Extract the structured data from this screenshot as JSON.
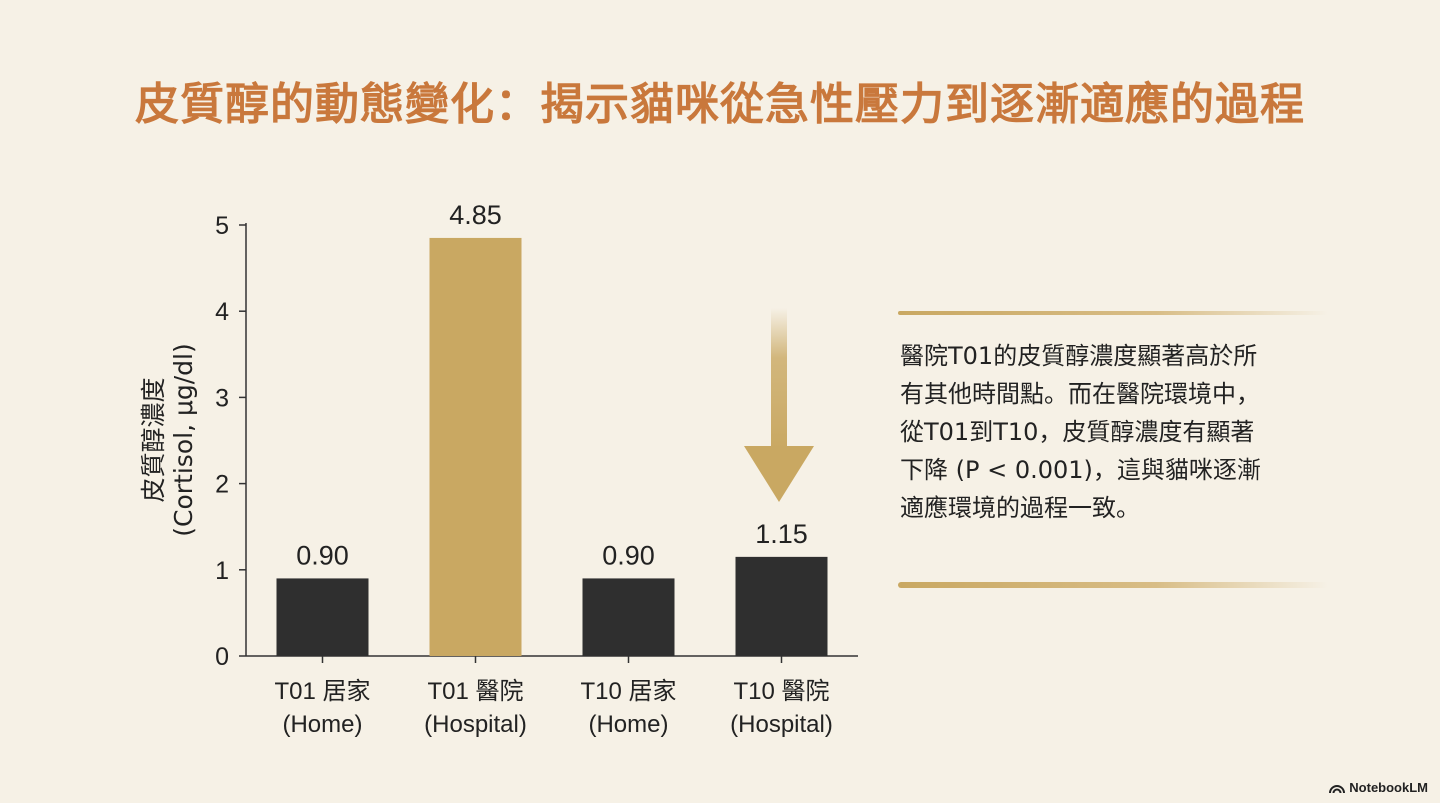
{
  "title": "皮質醇的動態變化：揭示貓咪從急性壓力到逐漸適應的過程",
  "chart_data": {
    "type": "bar",
    "categories": [
      {
        "line1": "T01 居家",
        "line2": "(Home)"
      },
      {
        "line1": "T01 醫院",
        "line2": "(Hospital)"
      },
      {
        "line1": "T10 居家",
        "line2": "(Home)"
      },
      {
        "line1": "T10 醫院",
        "line2": "(Hospital)"
      }
    ],
    "values": [
      0.9,
      4.85,
      0.9,
      1.15
    ],
    "value_labels": [
      "0.90",
      "4.85",
      "0.90",
      "1.15"
    ],
    "bar_colors": [
      "#2f2f2f",
      "#c9a862",
      "#2f2f2f",
      "#2f2f2f"
    ],
    "ylabel_line1": "皮質醇濃度",
    "ylabel_line2": "(Cortisol, μg/dl)",
    "yticks": [
      0,
      1,
      2,
      3,
      4,
      5
    ],
    "ylim": [
      0,
      5
    ],
    "grid": false,
    "legend": "none"
  },
  "annotation": {
    "lines": [
      "醫院T01的皮質醇濃度顯著高於所",
      "有其他時間點。而在醫院環境中，",
      "從T01到T10，皮質醇濃度有顯著",
      "下降 (P < 0.001)，這與貓咪逐漸",
      "適應環境的過程一致。"
    ],
    "arrow_icon": "down-arrow-icon",
    "accent_color": "#c9a862"
  },
  "brand": {
    "icon": "notebooklm-logo-icon",
    "label": "NotebookLM"
  }
}
